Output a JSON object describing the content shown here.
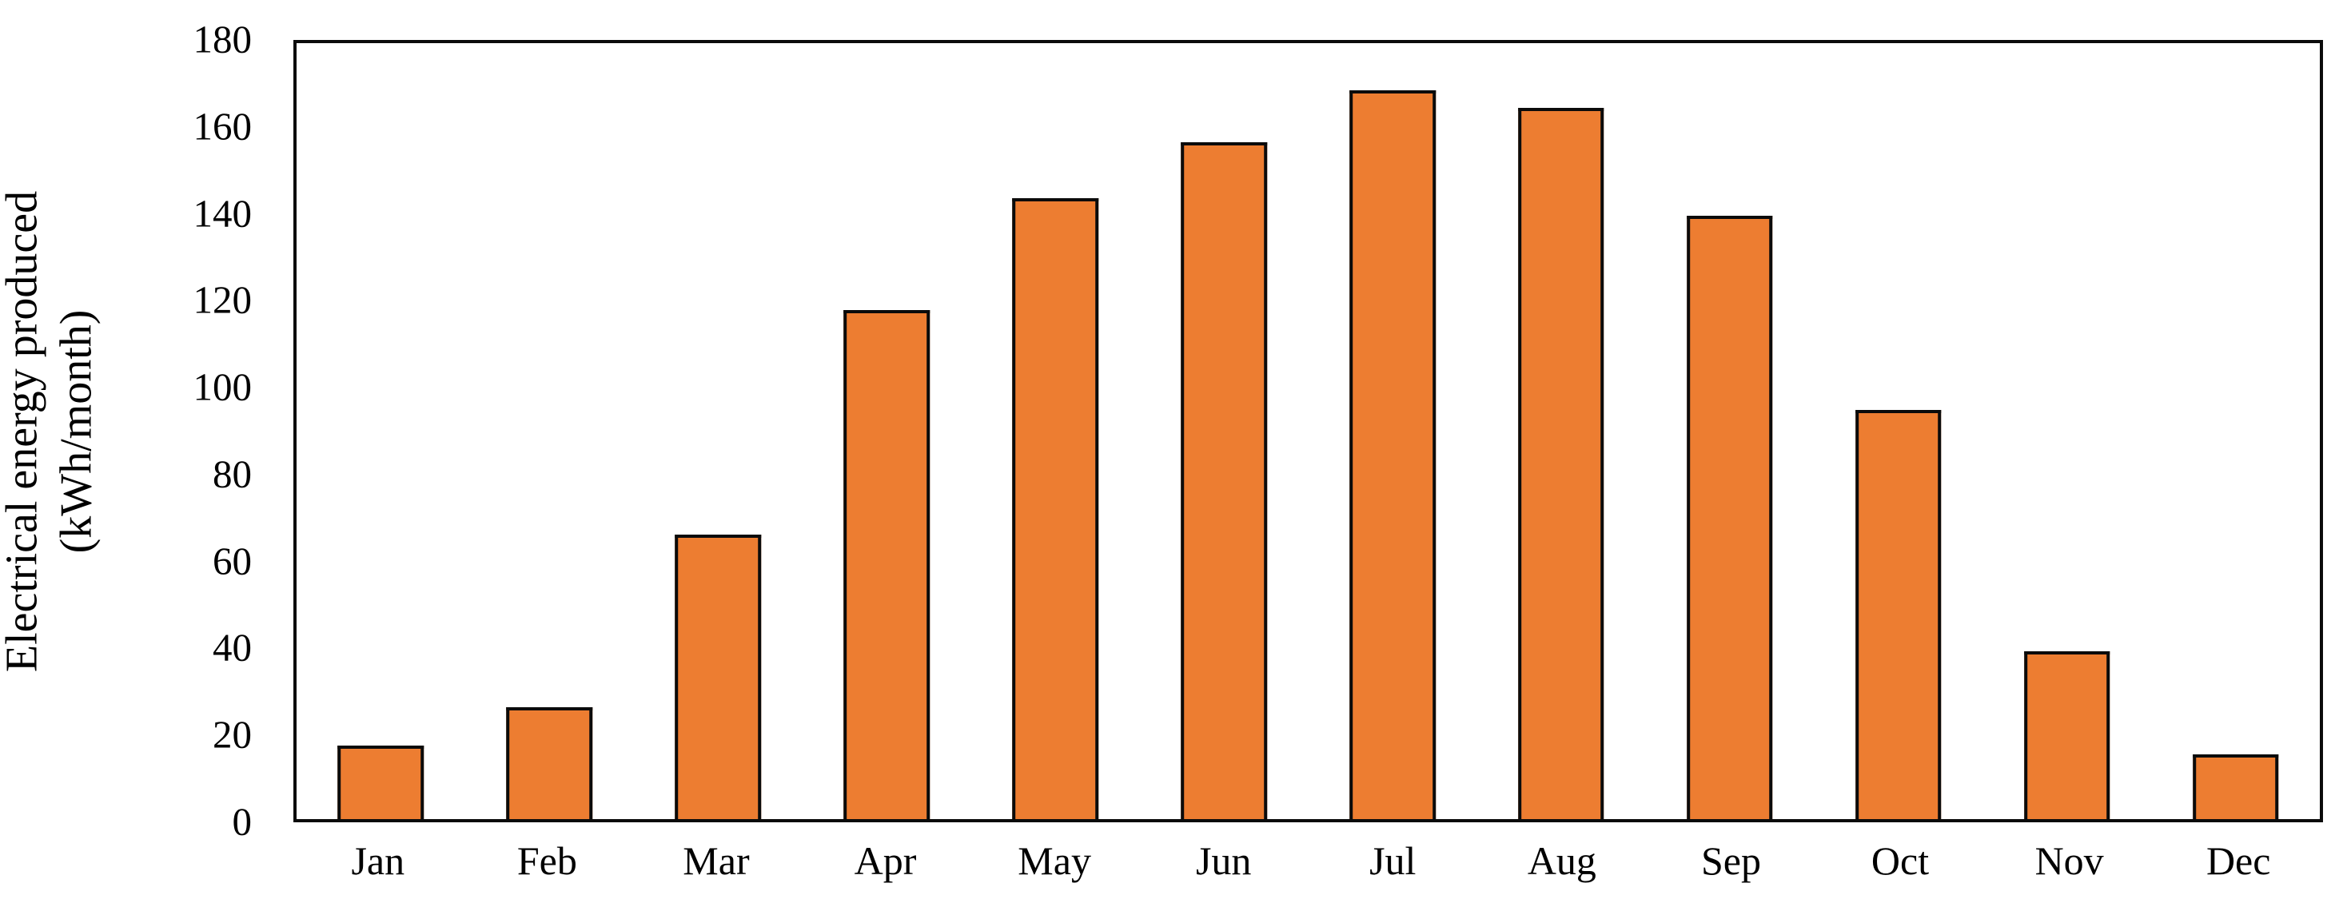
{
  "figure": {
    "y_axis_title_line1": "Electrical energy produced",
    "y_axis_title_line2": "(kWh/month)"
  },
  "chart_data": {
    "type": "bar",
    "title": "",
    "xlabel": "",
    "ylabel": "Electrical energy produced (kWh/month)",
    "categories": [
      "Jan",
      "Feb",
      "Mar",
      "Apr",
      "May",
      "Jun",
      "Jul",
      "Aug",
      "Sep",
      "Oct",
      "Nov",
      "Dec"
    ],
    "values": [
      17,
      26,
      66,
      118,
      144,
      157,
      169,
      165,
      140,
      95,
      39,
      15
    ],
    "ylim": [
      0,
      180
    ],
    "yticks": [
      0,
      20,
      40,
      60,
      80,
      100,
      120,
      140,
      160,
      180
    ],
    "grid": false,
    "legend_position": "none",
    "bar_fill_color": "#ED7D31",
    "bar_border_color": "#0b0b0b",
    "plot_frame": "full-box"
  }
}
